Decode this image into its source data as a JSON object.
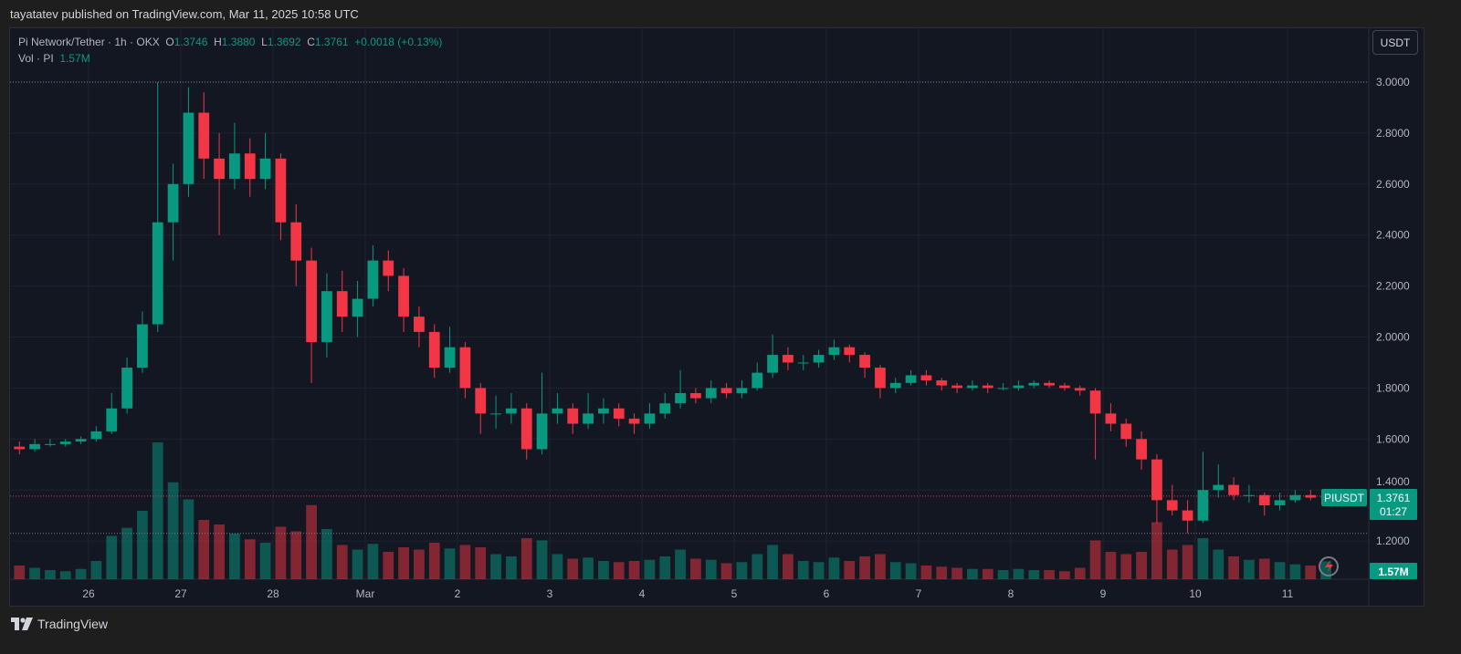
{
  "header": {
    "published": "tayatatev published on TradingView.com, Mar 11, 2025 10:58 UTC"
  },
  "legend": {
    "symbol": "Pi Network/Tether · 1h · OKX",
    "open_label": "O",
    "open": "1.3746",
    "high_label": "H",
    "high": "1.3880",
    "low_label": "L",
    "low": "1.3692",
    "close_label": "C",
    "close": "1.3761",
    "change": "+0.0018 (+0.13%)",
    "vol_label": "Vol · PI",
    "vol": "1.57M"
  },
  "currency_button": "USDT",
  "price_label": {
    "ticker": "PIUSDT",
    "price": "1.3761",
    "countdown": "01:27"
  },
  "volume_label": "1.57M",
  "footer": {
    "brand": "TradingView"
  },
  "colors": {
    "up": "#089981",
    "down": "#f23645",
    "background": "#131722"
  },
  "chart_data": {
    "type": "candlestick",
    "title": "Pi Network/Tether · 1h · OKX",
    "ylim": [
      1.08,
      3.1
    ],
    "y_ticks": [
      "3.0000",
      "2.8000",
      "2.6000",
      "2.4000",
      "2.2000",
      "2.0000",
      "1.8000",
      "1.6000",
      "1.4000",
      "1.2000"
    ],
    "x_ticks": [
      {
        "label": "26",
        "day": 0
      },
      {
        "label": "27",
        "day": 1
      },
      {
        "label": "28",
        "day": 2
      },
      {
        "label": "Mar",
        "day": 3
      },
      {
        "label": "2",
        "day": 4
      },
      {
        "label": "3",
        "day": 5
      },
      {
        "label": "4",
        "day": 6
      },
      {
        "label": "5",
        "day": 7
      },
      {
        "label": "6",
        "day": 8
      },
      {
        "label": "7",
        "day": 9
      },
      {
        "label": "8",
        "day": 10
      },
      {
        "label": "9",
        "day": 11
      },
      {
        "label": "10",
        "day": 12
      },
      {
        "label": "11",
        "day": 13
      }
    ],
    "grid": true,
    "last_price": 1.3761,
    "candle_interval_hours": 4,
    "first_candle": "Feb 25 04:00",
    "candles_ohlcv": [
      [
        1.57,
        1.59,
        1.54,
        1.56,
        1.2
      ],
      [
        1.56,
        1.6,
        1.55,
        1.58,
        1.0
      ],
      [
        1.58,
        1.6,
        1.57,
        1.58,
        0.8
      ],
      [
        1.58,
        1.6,
        1.57,
        1.59,
        0.7
      ],
      [
        1.59,
        1.61,
        1.58,
        1.6,
        0.9
      ],
      [
        1.6,
        1.65,
        1.59,
        1.63,
        1.6
      ],
      [
        1.63,
        1.78,
        1.62,
        1.72,
        3.8
      ],
      [
        1.72,
        1.92,
        1.7,
        1.88,
        4.5
      ],
      [
        1.88,
        2.1,
        1.86,
        2.05,
        6.0
      ],
      [
        2.05,
        3.0,
        2.02,
        2.45,
        12.0
      ],
      [
        2.45,
        2.68,
        2.3,
        2.6,
        8.5
      ],
      [
        2.6,
        2.98,
        2.55,
        2.88,
        7.0
      ],
      [
        2.88,
        2.96,
        2.62,
        2.7,
        5.2
      ],
      [
        2.7,
        2.8,
        2.4,
        2.62,
        4.8
      ],
      [
        2.62,
        2.84,
        2.58,
        2.72,
        4.0
      ],
      [
        2.72,
        2.78,
        2.55,
        2.62,
        3.5
      ],
      [
        2.62,
        2.8,
        2.58,
        2.7,
        3.2
      ],
      [
        2.7,
        2.72,
        2.38,
        2.45,
        4.6
      ],
      [
        2.45,
        2.52,
        2.2,
        2.3,
        4.2
      ],
      [
        2.3,
        2.35,
        1.82,
        1.98,
        6.5
      ],
      [
        1.98,
        2.25,
        1.92,
        2.18,
        4.4
      ],
      [
        2.18,
        2.26,
        2.02,
        2.08,
        3.0
      ],
      [
        2.08,
        2.22,
        2.0,
        2.15,
        2.6
      ],
      [
        2.15,
        2.36,
        2.12,
        2.3,
        3.1
      ],
      [
        2.3,
        2.34,
        2.18,
        2.24,
        2.4
      ],
      [
        2.24,
        2.27,
        2.02,
        2.08,
        2.8
      ],
      [
        2.08,
        2.12,
        1.96,
        2.02,
        2.6
      ],
      [
        2.02,
        2.05,
        1.84,
        1.88,
        3.2
      ],
      [
        1.88,
        2.04,
        1.86,
        1.96,
        2.7
      ],
      [
        1.96,
        1.98,
        1.76,
        1.8,
        3.0
      ],
      [
        1.8,
        1.82,
        1.62,
        1.7,
        2.8
      ],
      [
        1.7,
        1.77,
        1.64,
        1.7,
        2.2
      ],
      [
        1.7,
        1.78,
        1.66,
        1.72,
        2.0
      ],
      [
        1.72,
        1.74,
        1.52,
        1.56,
        3.6
      ],
      [
        1.56,
        1.86,
        1.54,
        1.7,
        3.4
      ],
      [
        1.7,
        1.78,
        1.66,
        1.72,
        2.2
      ],
      [
        1.72,
        1.74,
        1.62,
        1.66,
        1.8
      ],
      [
        1.66,
        1.78,
        1.64,
        1.7,
        1.9
      ],
      [
        1.7,
        1.76,
        1.66,
        1.72,
        1.6
      ],
      [
        1.72,
        1.74,
        1.65,
        1.68,
        1.5
      ],
      [
        1.68,
        1.7,
        1.62,
        1.66,
        1.6
      ],
      [
        1.66,
        1.74,
        1.64,
        1.7,
        1.7
      ],
      [
        1.7,
        1.78,
        1.68,
        1.74,
        2.0
      ],
      [
        1.74,
        1.87,
        1.72,
        1.78,
        2.6
      ],
      [
        1.78,
        1.8,
        1.74,
        1.76,
        1.8
      ],
      [
        1.76,
        1.83,
        1.74,
        1.8,
        1.7
      ],
      [
        1.8,
        1.82,
        1.76,
        1.78,
        1.4
      ],
      [
        1.78,
        1.83,
        1.76,
        1.8,
        1.5
      ],
      [
        1.8,
        1.9,
        1.79,
        1.86,
        2.2
      ],
      [
        1.86,
        2.01,
        1.84,
        1.93,
        3.0
      ],
      [
        1.93,
        1.96,
        1.87,
        1.9,
        2.2
      ],
      [
        1.9,
        1.93,
        1.87,
        1.9,
        1.6
      ],
      [
        1.9,
        1.95,
        1.88,
        1.93,
        1.5
      ],
      [
        1.93,
        1.99,
        1.91,
        1.96,
        1.9
      ],
      [
        1.96,
        1.97,
        1.9,
        1.93,
        1.6
      ],
      [
        1.93,
        1.94,
        1.84,
        1.88,
        2.0
      ],
      [
        1.88,
        1.89,
        1.76,
        1.8,
        2.2
      ],
      [
        1.8,
        1.84,
        1.78,
        1.82,
        1.5
      ],
      [
        1.82,
        1.87,
        1.81,
        1.85,
        1.4
      ],
      [
        1.85,
        1.87,
        1.81,
        1.83,
        1.2
      ],
      [
        1.83,
        1.84,
        1.79,
        1.81,
        1.1
      ],
      [
        1.81,
        1.82,
        1.78,
        1.8,
        1.0
      ],
      [
        1.8,
        1.83,
        1.79,
        1.81,
        0.9
      ],
      [
        1.81,
        1.82,
        1.78,
        1.8,
        0.9
      ],
      [
        1.8,
        1.82,
        1.79,
        1.8,
        0.8
      ],
      [
        1.8,
        1.83,
        1.79,
        1.81,
        0.9
      ],
      [
        1.81,
        1.83,
        1.8,
        1.82,
        0.8
      ],
      [
        1.82,
        1.83,
        1.8,
        1.81,
        0.8
      ],
      [
        1.81,
        1.82,
        1.79,
        1.8,
        0.7
      ],
      [
        1.8,
        1.81,
        1.77,
        1.79,
        1.0
      ],
      [
        1.79,
        1.8,
        1.52,
        1.7,
        3.4
      ],
      [
        1.7,
        1.74,
        1.63,
        1.66,
        2.4
      ],
      [
        1.66,
        1.68,
        1.57,
        1.6,
        2.2
      ],
      [
        1.6,
        1.63,
        1.48,
        1.52,
        2.4
      ],
      [
        1.52,
        1.54,
        1.27,
        1.36,
        5.0
      ],
      [
        1.36,
        1.42,
        1.3,
        1.32,
        2.6
      ],
      [
        1.32,
        1.36,
        1.23,
        1.28,
        3.0
      ],
      [
        1.28,
        1.55,
        1.27,
        1.4,
        3.6
      ],
      [
        1.4,
        1.5,
        1.37,
        1.42,
        2.6
      ],
      [
        1.42,
        1.45,
        1.36,
        1.38,
        2.0
      ],
      [
        1.38,
        1.42,
        1.35,
        1.38,
        1.7
      ],
      [
        1.38,
        1.39,
        1.3,
        1.34,
        1.8
      ],
      [
        1.34,
        1.39,
        1.32,
        1.36,
        1.5
      ],
      [
        1.36,
        1.4,
        1.35,
        1.38,
        1.3
      ],
      [
        1.38,
        1.4,
        1.36,
        1.37,
        1.2
      ],
      [
        1.3746,
        1.388,
        1.3692,
        1.3761,
        1.57
      ]
    ]
  }
}
